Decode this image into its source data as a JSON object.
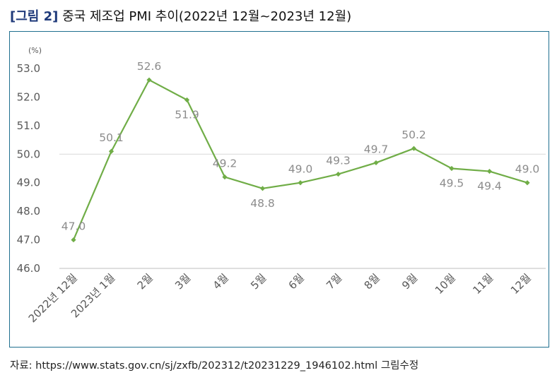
{
  "figure": {
    "tag": "[그림 2]",
    "title": "중국 제조업 PMI 추이(2022년 12월~2023년 12월)"
  },
  "source": "자료: https://www.stats.gov.cn/sj/zxfb/202312/t20231229_1946102.html 그림수정",
  "chart_data": {
    "type": "line",
    "title": "",
    "xlabel": "",
    "ylabel": "(%)",
    "ylim": [
      46.0,
      53.0
    ],
    "yticks": [
      "53.0",
      "52.0",
      "51.0",
      "50.0",
      "49.0",
      "48.0",
      "47.0",
      "46.0"
    ],
    "grid": false,
    "reference_line": 50.0,
    "categories": [
      "2022년 12월",
      "2023년 1월",
      "2월",
      "3월",
      "4월",
      "5월",
      "6월",
      "7월",
      "8월",
      "9월",
      "10월",
      "11월",
      "12월"
    ],
    "series": [
      {
        "name": "",
        "color": "#70ad47",
        "values": [
          47.0,
          50.1,
          52.6,
          51.9,
          49.2,
          48.8,
          49.0,
          49.3,
          49.7,
          50.2,
          49.5,
          49.4,
          49.0
        ],
        "labels": [
          "47.0",
          "50.1",
          "52.6",
          "51.9",
          "49.2",
          "48.8",
          "49.0",
          "49.3",
          "49.7",
          "50.2",
          "49.5",
          "49.4",
          "49.0"
        ]
      }
    ]
  }
}
